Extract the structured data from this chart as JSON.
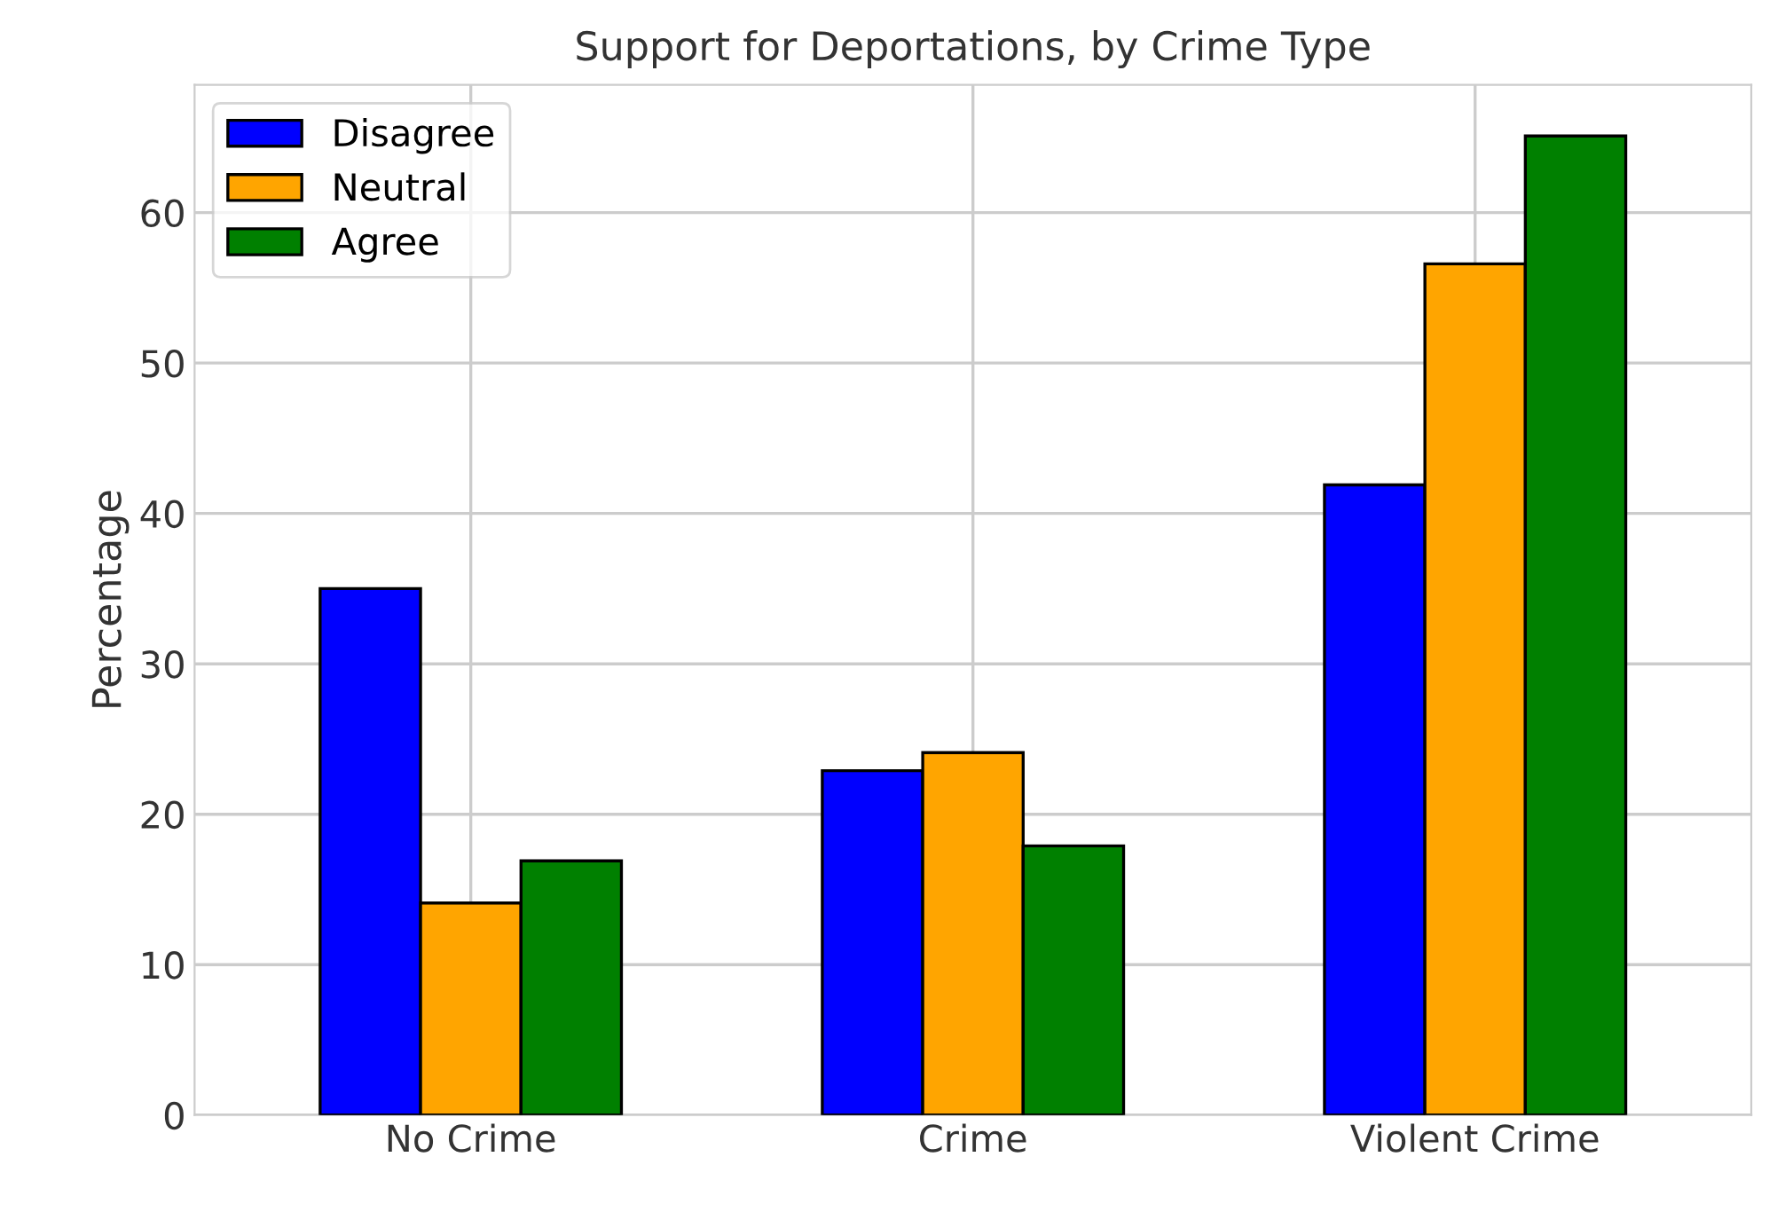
{
  "chart_data": {
    "type": "bar",
    "title": "Support for Deportations, by Crime Type",
    "ylabel": "Percentage",
    "categories": [
      "No Crime",
      "Crime",
      "Violent Crime"
    ],
    "series": [
      {
        "name": "Disagree",
        "color": "#0000ff",
        "values": [
          35,
          22.9,
          41.9
        ]
      },
      {
        "name": "Neutral",
        "color": "#ffa500",
        "values": [
          14.1,
          24.1,
          56.6
        ]
      },
      {
        "name": "Agree",
        "color": "#008000",
        "values": [
          16.9,
          17.9,
          65.1
        ]
      }
    ],
    "ylim": [
      0,
      68.5
    ],
    "yticks": [
      0,
      10,
      20,
      30,
      40,
      50,
      60
    ],
    "grid": true,
    "legend": "top left"
  }
}
